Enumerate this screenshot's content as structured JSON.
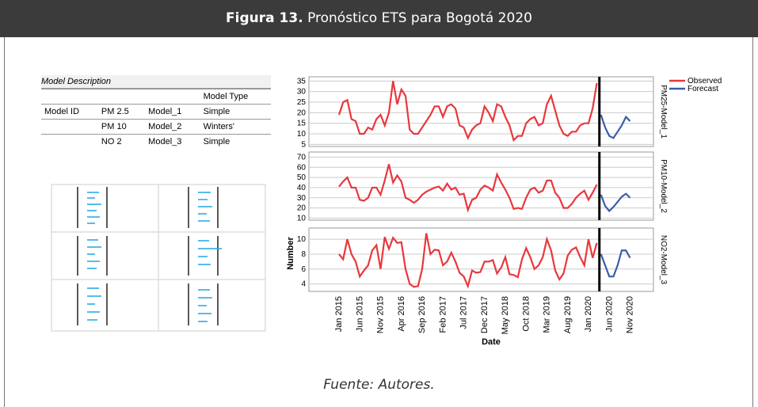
{
  "header": {
    "label": "Figura 13.",
    "title": "Pronóstico ETS para Bogotá 2020"
  },
  "table": {
    "caption": "Model Description",
    "column_header": "Model Type",
    "row_header": "Model ID",
    "rows": [
      [
        "PM 2.5",
        "Model_1",
        "Simple"
      ],
      [
        "PM 10",
        "Model_2",
        "Winters'"
      ],
      [
        "NO 2",
        "Model_3",
        "Simple"
      ]
    ]
  },
  "chart_data": {
    "type": "line",
    "x_label": "Date",
    "y_label": "Number",
    "categories": [
      "Jan 2015",
      null,
      null,
      null,
      null,
      "Jun 2015",
      null,
      null,
      null,
      null,
      "Nov 2015",
      null,
      null,
      null,
      null,
      "Apr 2016",
      null,
      null,
      null,
      null,
      "Sep 2016",
      null,
      null,
      null,
      null,
      "Feb 2017",
      null,
      null,
      null,
      null,
      "Jul 2017",
      null,
      null,
      null,
      null,
      "Dec 2017",
      null,
      null,
      null,
      null,
      "May 2018",
      null,
      null,
      null,
      null,
      "Oct 2018",
      null,
      null,
      null,
      null,
      "Mar 2019",
      null,
      null,
      null,
      null,
      "Aug 2019",
      null,
      null,
      null,
      null,
      "Jan 2020",
      null,
      null,
      null,
      null,
      "Jun 2020",
      null,
      null,
      null,
      null,
      "Nov 2020",
      null
    ],
    "grid": true,
    "panels": [
      {
        "label": "PM25-Model_1",
        "ylim": [
          4,
          37
        ],
        "yticks": [
          5,
          10,
          15,
          20,
          25,
          30,
          35
        ],
        "series": [
          {
            "name": "Observed",
            "color": "#e8383d",
            "values": [
              19,
              25,
              26,
              17,
              16,
              10,
              10,
              13,
              12,
              17,
              19,
              14,
              20,
              35,
              24,
              31,
              28,
              12,
              10,
              10,
              13,
              16,
              19,
              23,
              23,
              18,
              23,
              24,
              22,
              14,
              13,
              8,
              12,
              14,
              15,
              23,
              20,
              16,
              24,
              23,
              18,
              14,
              7,
              9,
              9,
              15,
              17,
              18,
              14,
              15,
              24,
              28,
              21,
              14,
              10,
              9,
              11,
              11,
              14,
              15,
              15,
              22,
              34,
              null,
              null,
              null,
              null,
              null,
              null,
              null,
              null,
              null
            ]
          },
          {
            "name": "Forecast",
            "color": "#3a5ea8",
            "values": [
              null,
              null,
              null,
              null,
              null,
              null,
              null,
              null,
              null,
              null,
              null,
              null,
              null,
              null,
              null,
              null,
              null,
              null,
              null,
              null,
              null,
              null,
              null,
              null,
              null,
              null,
              null,
              null,
              null,
              null,
              null,
              null,
              null,
              null,
              null,
              null,
              null,
              null,
              null,
              null,
              null,
              null,
              null,
              null,
              null,
              null,
              null,
              null,
              null,
              null,
              null,
              null,
              null,
              null,
              null,
              null,
              null,
              null,
              null,
              null,
              null,
              null,
              null,
              19,
              13,
              9,
              8,
              11,
              14,
              18,
              16,
              null
            ]
          }
        ]
      },
      {
        "label": "PM10-Model_2",
        "ylim": [
          8,
          75
        ],
        "yticks": [
          10,
          20,
          30,
          40,
          50,
          60,
          70
        ],
        "series": [
          {
            "name": "Observed",
            "color": "#e8383d",
            "values": [
              41,
              46,
              50,
              40,
              40,
              28,
              27,
              30,
              40,
              40,
              33,
              47,
              63,
              45,
              52,
              46,
              30,
              28,
              25,
              28,
              33,
              36,
              38,
              40,
              41,
              37,
              44,
              38,
              40,
              33,
              34,
              18,
              28,
              30,
              38,
              42,
              40,
              37,
              53,
              45,
              38,
              30,
              19,
              20,
              19,
              30,
              38,
              40,
              35,
              37,
              47,
              47,
              35,
              30,
              20,
              20,
              24,
              30,
              34,
              37,
              28,
              35,
              43,
              null,
              null,
              null,
              null,
              null,
              null,
              null,
              null,
              null
            ]
          },
          {
            "name": "Forecast",
            "color": "#3a5ea8",
            "values": [
              null,
              null,
              null,
              null,
              null,
              null,
              null,
              null,
              null,
              null,
              null,
              null,
              null,
              null,
              null,
              null,
              null,
              null,
              null,
              null,
              null,
              null,
              null,
              null,
              null,
              null,
              null,
              null,
              null,
              null,
              null,
              null,
              null,
              null,
              null,
              null,
              null,
              null,
              null,
              null,
              null,
              null,
              null,
              null,
              null,
              null,
              null,
              null,
              null,
              null,
              null,
              null,
              null,
              null,
              null,
              null,
              null,
              null,
              null,
              null,
              null,
              null,
              null,
              33,
              22,
              17,
              21,
              26,
              31,
              34,
              30,
              null
            ]
          }
        ]
      },
      {
        "label": "NO2-Model_3",
        "ylim": [
          3,
          11.5
        ],
        "yticks": [
          4,
          6,
          8,
          10
        ],
        "series": [
          {
            "name": "Observed",
            "color": "#e8383d",
            "values": [
              8,
              7.3,
              10,
              8,
              7,
              5,
              5.8,
              6.5,
              8.5,
              9.2,
              6,
              10.3,
              8.7,
              10.2,
              9.5,
              9.6,
              6,
              4,
              3.6,
              3.7,
              6,
              10.8,
              8,
              8.6,
              8.5,
              6.5,
              7,
              8.2,
              7,
              5.5,
              5,
              3.7,
              5.8,
              5.5,
              5.6,
              7,
              7,
              7.2,
              5.4,
              6.2,
              7.6,
              5.3,
              5.2,
              4.9,
              7.3,
              8.8,
              7.6,
              6,
              6.5,
              7.6,
              10,
              8.5,
              5.8,
              4.6,
              5.4,
              7.8,
              8.6,
              8.9,
              7.6,
              6.5,
              10,
              7.5,
              9.5,
              null,
              null,
              null,
              null,
              null,
              null,
              null,
              null,
              null
            ]
          },
          {
            "name": "Forecast",
            "color": "#3a5ea8",
            "values": [
              null,
              null,
              null,
              null,
              null,
              null,
              null,
              null,
              null,
              null,
              null,
              null,
              null,
              null,
              null,
              null,
              null,
              null,
              null,
              null,
              null,
              null,
              null,
              null,
              null,
              null,
              null,
              null,
              null,
              null,
              null,
              null,
              null,
              null,
              null,
              null,
              null,
              null,
              null,
              null,
              null,
              null,
              null,
              null,
              null,
              null,
              null,
              null,
              null,
              null,
              null,
              null,
              null,
              null,
              null,
              null,
              null,
              null,
              null,
              null,
              null,
              null,
              null,
              8,
              6.5,
              5,
              5,
              6.5,
              8.5,
              8.5,
              7.5,
              null
            ]
          }
        ]
      }
    ]
  },
  "source": "Fuente: Autores."
}
